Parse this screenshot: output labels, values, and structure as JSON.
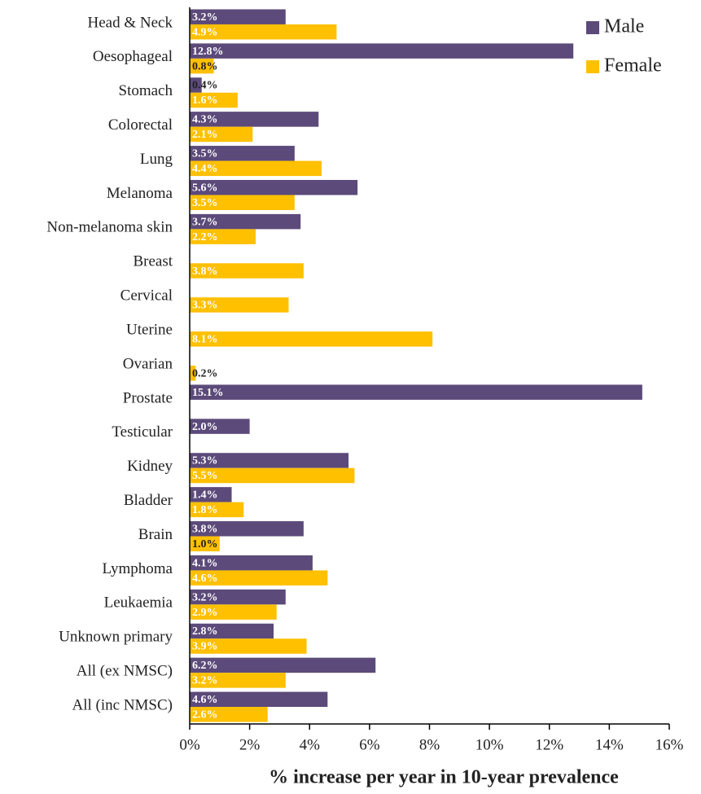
{
  "chart_data": {
    "type": "barh",
    "x_label": "% increase per year in 10-year prevalence",
    "categories": [
      "Head & Neck",
      "Oesophageal",
      "Stomach",
      "Colorectal",
      "Lung",
      "Melanoma",
      "Non-melanoma skin",
      "Breast",
      "Cervical",
      "Uterine",
      "Ovarian",
      "Prostate",
      "Testicular",
      "Kidney",
      "Bladder",
      "Brain",
      "Lymphoma",
      "Leukaemia",
      "Unknown primary",
      "All (ex NMSC)",
      "All (inc NMSC)"
    ],
    "series": [
      {
        "name": "Male",
        "color": "#5c4a7a",
        "values": [
          3.2,
          12.8,
          0.4,
          4.3,
          3.5,
          5.6,
          3.7,
          null,
          null,
          null,
          null,
          15.1,
          2.0,
          5.3,
          1.4,
          3.8,
          4.1,
          3.2,
          2.8,
          6.2,
          4.6
        ],
        "value_labels": [
          "3.2%",
          "12.8%",
          "0.4%",
          "4.3%",
          "3.5%",
          "5.6%",
          "3.7%",
          null,
          null,
          null,
          null,
          "15.1%",
          "2.0%",
          "5.3%",
          "1.4%",
          "3.8%",
          "4.1%",
          "3.2%",
          "2.8%",
          "6.2%",
          "4.6%"
        ]
      },
      {
        "name": "Female",
        "color": "#ffc000",
        "values": [
          4.9,
          0.8,
          1.6,
          2.1,
          4.4,
          3.5,
          2.2,
          3.8,
          3.3,
          8.1,
          0.2,
          null,
          null,
          5.5,
          1.8,
          1.0,
          4.6,
          2.9,
          3.9,
          3.2,
          2.6
        ],
        "value_labels": [
          "4.9%",
          "0.8%",
          "1.6%",
          "2.1%",
          "4.4%",
          "3.5%",
          "2.2%",
          "3.8%",
          "3.3%",
          "8.1%",
          "0.2%",
          null,
          null,
          "5.5%",
          "1.8%",
          "1.0%",
          "4.6%",
          "2.9%",
          "3.9%",
          "3.2%",
          "2.6%"
        ]
      }
    ],
    "xlim": [
      0,
      16
    ],
    "xticks": [
      {
        "value": 0,
        "label": "0%"
      },
      {
        "value": 2,
        "label": "2%"
      },
      {
        "value": 4,
        "label": "4%"
      },
      {
        "value": 6,
        "label": "6%"
      },
      {
        "value": 8,
        "label": "8%"
      },
      {
        "value": 10,
        "label": "10%"
      },
      {
        "value": 12,
        "label": "12%"
      },
      {
        "value": 14,
        "label": "14%"
      },
      {
        "value": 16,
        "label": "16%"
      }
    ],
    "legend": "top-right"
  }
}
